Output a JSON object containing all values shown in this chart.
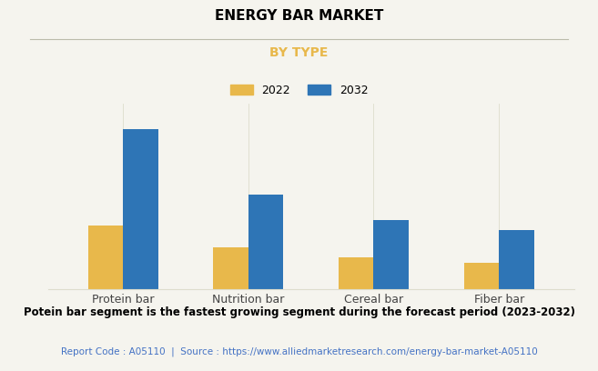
{
  "title": "ENERGY BAR MARKET",
  "subtitle": "BY TYPE",
  "categories": [
    "Protein bar",
    "Nutrition bar",
    "Cereal bar",
    "Fiber bar"
  ],
  "series": [
    {
      "label": "2022",
      "color": "#E8B84B",
      "values": [
        3.8,
        2.5,
        1.9,
        1.6
      ]
    },
    {
      "label": "2032",
      "color": "#2E75B6",
      "values": [
        9.5,
        5.6,
        4.1,
        3.5
      ]
    }
  ],
  "ylim": [
    0,
    11
  ],
  "background_color": "#F5F4EE",
  "title_fontsize": 11,
  "subtitle_fontsize": 10,
  "subtitle_color": "#E8B84B",
  "xlabel_fontsize": 9,
  "legend_fontsize": 9,
  "bar_width": 0.28,
  "footnote": "Potein bar segment is the fastest growing segment during the forecast period (2023-2032)",
  "source_text": "Report Code : A05110  |  Source : https://www.alliedmarketresearch.com/energy-bar-market-A05110",
  "source_color": "#4472C4",
  "footnote_fontsize": 8.5,
  "source_fontsize": 7.5,
  "grid_color": "#DDDDCC",
  "title_color": "#000000"
}
